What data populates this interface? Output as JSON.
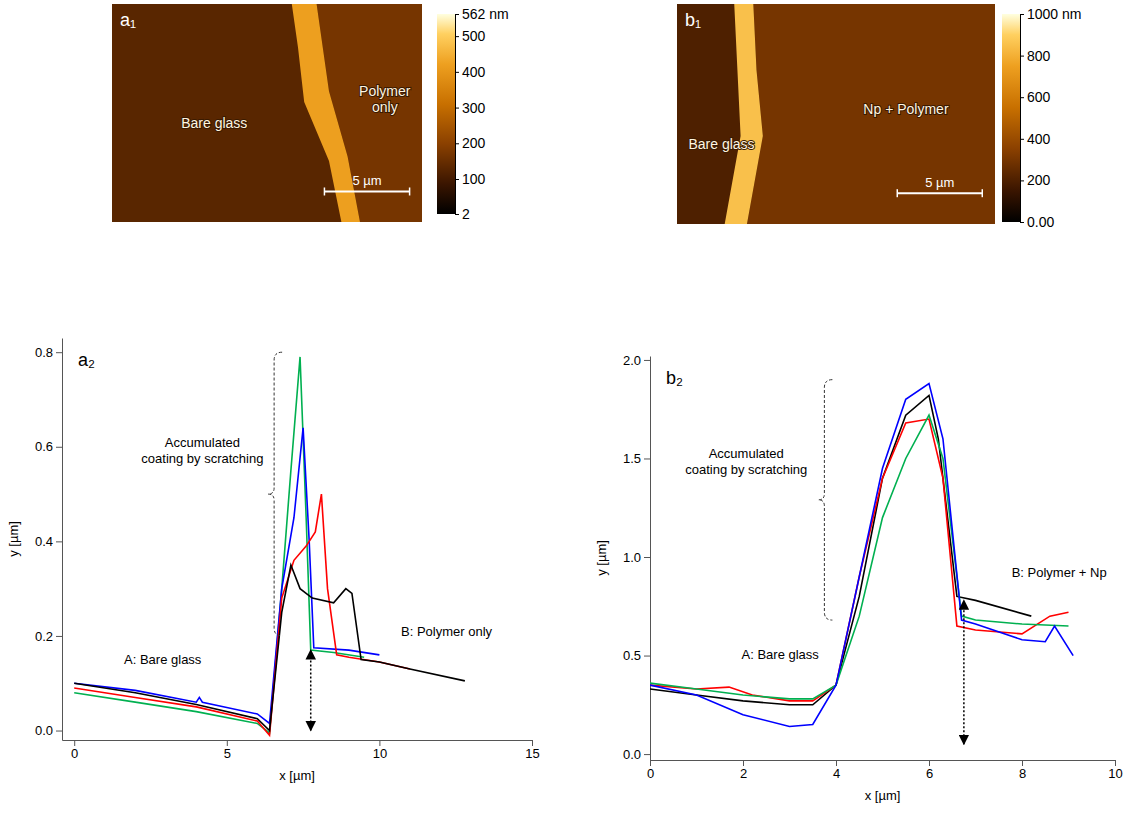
{
  "chart_data": [
    {
      "type": "image",
      "panel_label": "a₁",
      "regions": [
        {
          "label": "Bare glass",
          "height": 130
        },
        {
          "label": "Polymer only",
          "height": 170
        },
        {
          "label": null,
          "height": 420
        }
      ],
      "colorbar": {
        "range": [
          2,
          562
        ],
        "ticks": [
          {
            "value": 562,
            "label": "562 nm"
          },
          500,
          400,
          300,
          200,
          100,
          2
        ]
      },
      "scale_bar": {
        "width": 18.2,
        "length": 5,
        "label": "5 µm"
      }
    },
    {
      "type": "image",
      "panel_label": "b₁",
      "regions": [
        {
          "label": "Bare glass",
          "height": 200
        },
        {
          "label": "Np + Polymer",
          "height": 300
        },
        {
          "label": null,
          "height": 850
        }
      ],
      "colorbar": {
        "range": [
          0,
          1000
        ],
        "ticks": [
          {
            "value": 1000,
            "label": "1000 nm"
          },
          800,
          600,
          400,
          200,
          {
            "value": 0,
            "label": "0.00"
          }
        ]
      },
      "scale_bar": {
        "width": 18.7,
        "length": 5,
        "label": "5 µm"
      }
    },
    {
      "type": "line",
      "panel_label": "a₂",
      "x_label": "x [µm]",
      "y_label": "y [µm]",
      "xlim": [
        -0.4,
        15
      ],
      "xticks": [
        0,
        5,
        10,
        15
      ],
      "ylim": [
        -0.02,
        0.83
      ],
      "yticks": [
        {
          "value": 0,
          "label": "0.0"
        },
        0.2,
        0.4,
        0.6,
        0.8
      ],
      "series": [
        {
          "color": "#00b050",
          "x": [
            0,
            2,
            4,
            6,
            6.4,
            6.8,
            7.1,
            7.4,
            7.6,
            7.75,
            8.5,
            9.5
          ],
          "values": [
            0.08,
            0.06,
            0.04,
            0.015,
            -0.005,
            0.3,
            0.55,
            0.79,
            0.45,
            0.17,
            0.165,
            0.155
          ]
        },
        {
          "color": "#0000ff",
          "x": [
            0,
            2,
            4,
            4.1,
            4.2,
            6,
            6.4,
            6.8,
            7.2,
            7.5,
            7.7,
            7.85,
            9,
            10
          ],
          "values": [
            0.1,
            0.085,
            0.06,
            0.07,
            0.06,
            0.035,
            0.015,
            0.3,
            0.45,
            0.64,
            0.4,
            0.175,
            0.17,
            0.16
          ]
        },
        {
          "color": "#ff0000",
          "x": [
            0,
            2,
            4,
            6,
            6.4,
            6.8,
            7.2,
            7.6,
            7.9,
            8.1,
            8.3,
            8.6,
            9,
            10,
            11
          ],
          "values": [
            0.09,
            0.07,
            0.05,
            0.02,
            -0.01,
            0.28,
            0.36,
            0.39,
            0.42,
            0.5,
            0.3,
            0.16,
            0.155,
            0.145,
            0.13
          ]
        },
        {
          "color": "#000000",
          "x": [
            0,
            2,
            4,
            6,
            6.4,
            6.8,
            7.1,
            7.4,
            7.8,
            8.5,
            8.9,
            9.1,
            9.4,
            10,
            11,
            12.8
          ],
          "values": [
            0.1,
            0.08,
            0.055,
            0.025,
            0.0,
            0.25,
            0.35,
            0.3,
            0.28,
            0.27,
            0.3,
            0.29,
            0.15,
            0.145,
            0.13,
            0.105
          ]
        }
      ],
      "annotations": [
        {
          "text": "Accumulated coating by scratching",
          "x": 4.2,
          "y": 0.6
        },
        {
          "text": "A: Bare glass",
          "x": 2.9,
          "y": 0.14
        },
        {
          "text": "B: Polymer only",
          "x": 12.2,
          "y": 0.2
        }
      ],
      "bracket": {
        "x": 6.55,
        "y": [
          0.2,
          0.8
        ]
      },
      "thickness_arrow": {
        "x": 7.75,
        "y": [
          0,
          0.17
        ]
      }
    },
    {
      "type": "line",
      "panel_label": "b₂",
      "x_label": "x [µm]",
      "y_label": "y [µm]",
      "xlim": [
        0,
        10
      ],
      "xticks": [
        0,
        2,
        4,
        6,
        8,
        10
      ],
      "ylim": [
        -0.03,
        2.02
      ],
      "yticks": [
        {
          "value": 0,
          "label": "0.0"
        },
        0.5,
        {
          "value": 1,
          "label": "1.0"
        },
        1.5,
        {
          "value": 2,
          "label": "2.0"
        }
      ],
      "series": [
        {
          "color": "#000000",
          "x": [
            0,
            1,
            2,
            3,
            3.5,
            4,
            4.5,
            5,
            5.5,
            6,
            6.2,
            6.6,
            7,
            8.2
          ],
          "values": [
            0.33,
            0.3,
            0.27,
            0.25,
            0.25,
            0.35,
            0.8,
            1.4,
            1.72,
            1.82,
            1.6,
            0.8,
            0.78,
            0.7
          ]
        },
        {
          "color": "#ff0000",
          "x": [
            0,
            1,
            1.7,
            2.2,
            3,
            3.5,
            4,
            4.5,
            5,
            5.5,
            6,
            6.3,
            6.6,
            7,
            8,
            8.6,
            9
          ],
          "values": [
            0.35,
            0.33,
            0.34,
            0.3,
            0.27,
            0.27,
            0.35,
            0.9,
            1.4,
            1.68,
            1.7,
            1.4,
            0.65,
            0.63,
            0.61,
            0.7,
            0.72
          ]
        },
        {
          "color": "#00b050",
          "x": [
            0,
            1,
            2,
            3,
            3.5,
            4,
            4.5,
            5,
            5.5,
            6,
            6.3,
            6.7,
            7,
            8,
            9
          ],
          "values": [
            0.36,
            0.33,
            0.3,
            0.28,
            0.28,
            0.35,
            0.7,
            1.2,
            1.5,
            1.72,
            1.5,
            0.7,
            0.68,
            0.66,
            0.65
          ]
        },
        {
          "color": "#0000ff",
          "x": [
            0,
            1,
            2,
            3,
            3.5,
            4,
            4.5,
            5,
            5.5,
            6,
            6.3,
            6.7,
            7,
            8,
            8.5,
            8.7,
            9.1
          ],
          "values": [
            0.35,
            0.3,
            0.2,
            0.14,
            0.15,
            0.35,
            0.9,
            1.45,
            1.8,
            1.88,
            1.6,
            0.68,
            0.66,
            0.58,
            0.57,
            0.65,
            0.5
          ]
        }
      ],
      "annotations": [
        {
          "text": "Accumulated coating by scratching",
          "x": 2.07,
          "y": 1.5
        },
        {
          "text": "A: Bare glass",
          "x": 2.8,
          "y": 0.48
        },
        {
          "text": "B: Polymer + Np",
          "x": 8.8,
          "y": 0.9
        }
      ],
      "bracket": {
        "x": 3.75,
        "y": [
          0.68,
          1.9
        ]
      },
      "thickness_arrow": {
        "x": 6.75,
        "y": [
          0.05,
          0.78
        ]
      }
    }
  ]
}
